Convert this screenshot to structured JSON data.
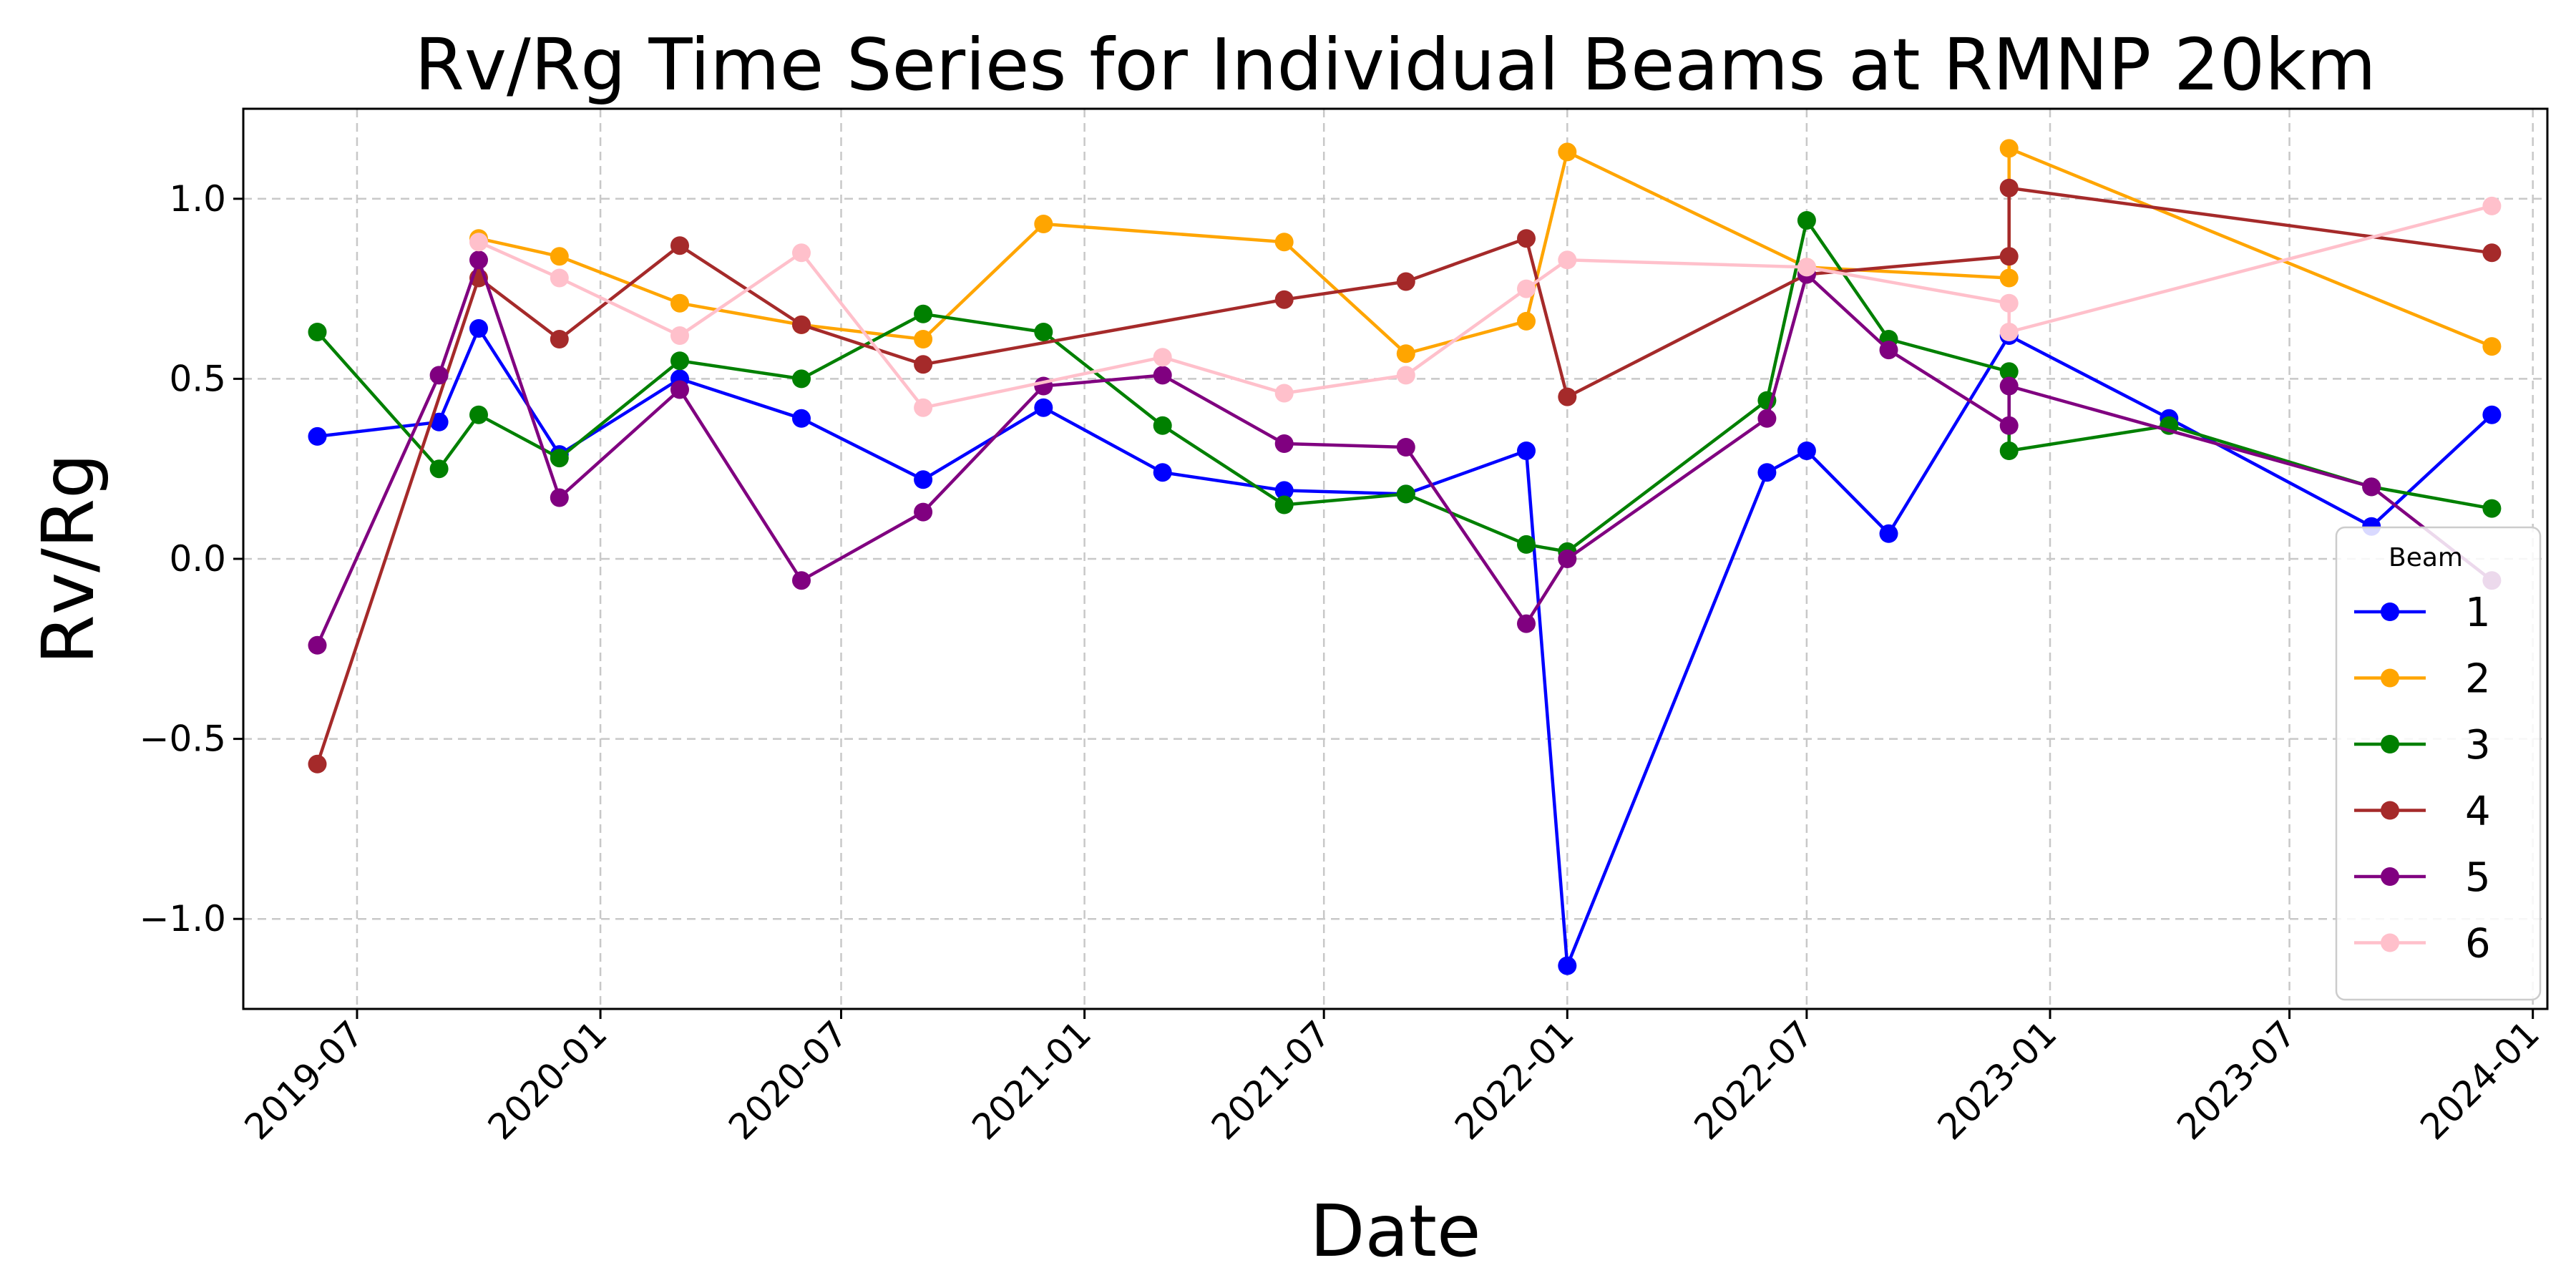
{
  "chart_data": {
    "type": "line",
    "title": "Rv/Rg Time Series for Individual Beams at RMNP 20km",
    "xlabel": "Date",
    "ylabel": "Rv/Rg",
    "xlim": [
      "2019-04-06",
      "2024-01-12"
    ],
    "ylim": [
      -1.25,
      1.25
    ],
    "grid": true,
    "x_ticks": [
      "2019-07",
      "2020-01",
      "2020-07",
      "2021-01",
      "2021-07",
      "2022-01",
      "2022-07",
      "2023-01",
      "2023-07",
      "2024-01"
    ],
    "x_ticks_dates": [
      "2019-07-01",
      "2020-01-01",
      "2020-07-01",
      "2021-01-01",
      "2021-07-01",
      "2022-01-01",
      "2022-07-01",
      "2023-01-01",
      "2023-07-01",
      "2024-01-01"
    ],
    "y_ticks": [
      1.0,
      0.5,
      0.0,
      -0.5,
      -1.0
    ],
    "y_tick_labels": [
      "1.0",
      "0.5",
      "0.0",
      "−0.5",
      "−1.0"
    ],
    "legend": {
      "title": "Beam",
      "placement": "lower-right"
    },
    "series": [
      {
        "name": "1",
        "color": "#0000ff",
        "points": [
          [
            "2019-06-01",
            0.34
          ],
          [
            "2019-09-01",
            0.38
          ],
          [
            "2019-10-01",
            0.64
          ],
          [
            "2019-12-01",
            0.29
          ],
          [
            "2020-03-01",
            0.5
          ],
          [
            "2020-06-01",
            0.39
          ],
          [
            "2020-09-01",
            0.22
          ],
          [
            "2020-12-01",
            0.42
          ],
          [
            "2021-03-01",
            0.24
          ],
          [
            "2021-06-01",
            0.19
          ],
          [
            "2021-09-01",
            0.18
          ],
          [
            "2021-12-01",
            0.3
          ],
          [
            "2022-01-01",
            -1.13
          ],
          [
            "2022-06-01",
            0.24
          ],
          [
            "2022-07-01",
            0.3
          ],
          [
            "2022-09-01",
            0.07
          ],
          [
            "2022-12-01",
            0.62
          ],
          [
            "2023-04-01",
            0.39
          ],
          [
            "2023-09-01",
            0.09
          ],
          [
            "2023-12-01",
            0.4
          ]
        ]
      },
      {
        "name": "2",
        "color": "#ffa500",
        "points": [
          [
            "2019-10-01",
            0.89
          ],
          [
            "2019-12-01",
            0.84
          ],
          [
            "2020-03-01",
            0.71
          ],
          [
            "2020-06-01",
            0.65
          ],
          [
            "2020-09-01",
            0.61
          ],
          [
            "2020-12-01",
            0.93
          ],
          [
            "2021-06-01",
            0.88
          ],
          [
            "2021-09-01",
            0.57
          ],
          [
            "2021-12-01",
            0.66
          ],
          [
            "2022-01-01",
            1.13
          ],
          [
            "2022-07-01",
            0.81
          ],
          [
            "2022-12-01",
            0.78
          ],
          [
            "2022-12-01",
            1.14
          ],
          [
            "2023-12-01",
            0.59
          ]
        ]
      },
      {
        "name": "3",
        "color": "#008000",
        "points": [
          [
            "2019-06-01",
            0.63
          ],
          [
            "2019-09-01",
            0.25
          ],
          [
            "2019-10-01",
            0.4
          ],
          [
            "2019-12-01",
            0.28
          ],
          [
            "2020-03-01",
            0.55
          ],
          [
            "2020-06-01",
            0.5
          ],
          [
            "2020-09-01",
            0.68
          ],
          [
            "2020-12-01",
            0.63
          ],
          [
            "2021-03-01",
            0.37
          ],
          [
            "2021-06-01",
            0.15
          ],
          [
            "2021-09-01",
            0.18
          ],
          [
            "2021-12-01",
            0.04
          ],
          [
            "2022-01-01",
            0.02
          ],
          [
            "2022-06-01",
            0.44
          ],
          [
            "2022-07-01",
            0.94
          ],
          [
            "2022-09-01",
            0.61
          ],
          [
            "2022-12-01",
            0.52
          ],
          [
            "2022-12-01",
            0.3
          ],
          [
            "2023-04-01",
            0.37
          ],
          [
            "2023-09-01",
            0.2
          ],
          [
            "2023-12-01",
            0.14
          ]
        ]
      },
      {
        "name": "4",
        "color": "#a52a2a",
        "points": [
          [
            "2019-06-01",
            -0.57
          ],
          [
            "2019-10-01",
            0.78
          ],
          [
            "2019-12-01",
            0.61
          ],
          [
            "2020-03-01",
            0.87
          ],
          [
            "2020-06-01",
            0.65
          ],
          [
            "2020-09-01",
            0.54
          ],
          [
            "2021-06-01",
            0.72
          ],
          [
            "2021-09-01",
            0.77
          ],
          [
            "2021-12-01",
            0.89
          ],
          [
            "2022-01-01",
            0.45
          ],
          [
            "2022-07-01",
            0.79
          ],
          [
            "2022-12-01",
            0.84
          ],
          [
            "2022-12-01",
            1.03
          ],
          [
            "2023-12-01",
            0.85
          ]
        ]
      },
      {
        "name": "5",
        "color": "#800080",
        "points": [
          [
            "2019-06-01",
            -0.24
          ],
          [
            "2019-09-01",
            0.51
          ],
          [
            "2019-10-01",
            0.83
          ],
          [
            "2019-12-01",
            0.17
          ],
          [
            "2020-03-01",
            0.47
          ],
          [
            "2020-06-01",
            -0.06
          ],
          [
            "2020-09-01",
            0.13
          ],
          [
            "2020-12-01",
            0.48
          ],
          [
            "2021-03-01",
            0.51
          ],
          [
            "2021-06-01",
            0.32
          ],
          [
            "2021-09-01",
            0.31
          ],
          [
            "2021-12-01",
            -0.18
          ],
          [
            "2022-01-01",
            0.0
          ],
          [
            "2022-06-01",
            0.39
          ],
          [
            "2022-07-01",
            0.79
          ],
          [
            "2022-09-01",
            0.58
          ],
          [
            "2022-12-01",
            0.37
          ],
          [
            "2022-12-01",
            0.48
          ],
          [
            "2023-09-01",
            0.2
          ],
          [
            "2023-12-01",
            -0.06
          ]
        ]
      },
      {
        "name": "6",
        "color": "#ffc0cb",
        "points": [
          [
            "2019-10-01",
            0.88
          ],
          [
            "2019-12-01",
            0.78
          ],
          [
            "2020-03-01",
            0.62
          ],
          [
            "2020-06-01",
            0.85
          ],
          [
            "2020-09-01",
            0.42
          ],
          [
            "2021-03-01",
            0.56
          ],
          [
            "2021-06-01",
            0.46
          ],
          [
            "2021-09-01",
            0.51
          ],
          [
            "2021-12-01",
            0.75
          ],
          [
            "2022-01-01",
            0.83
          ],
          [
            "2022-07-01",
            0.81
          ],
          [
            "2022-12-01",
            0.71
          ],
          [
            "2022-12-01",
            0.63
          ],
          [
            "2023-12-01",
            0.98
          ]
        ]
      }
    ]
  }
}
